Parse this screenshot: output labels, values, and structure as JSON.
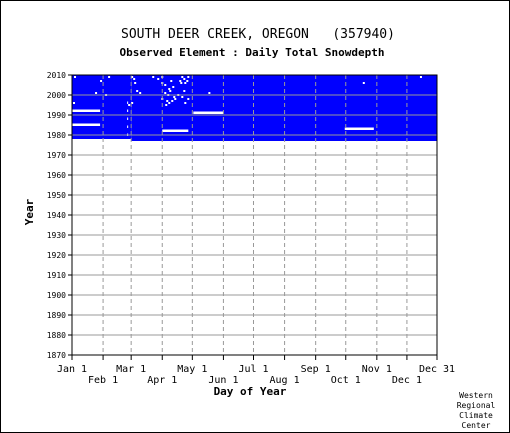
{
  "chart_data": {
    "type": "heatmap",
    "title": "SOUTH DEER CREEK, OREGON   (357940)",
    "subtitle": "Observed Element : Daily Total Snowdepth",
    "xlabel": "Day of Year",
    "ylabel": "Year",
    "x_ticks_upper": [
      "Jan 1",
      "Mar 1",
      "May 1",
      "Jul 1",
      "Sep 1",
      "Nov 1",
      "Dec 31"
    ],
    "x_ticks_lower": [
      "Feb 1",
      "Apr 1",
      "Jun 1",
      "Aug 1",
      "Oct 1",
      "Dec 1"
    ],
    "x_tick_days_upper": [
      1,
      60,
      121,
      182,
      244,
      305,
      365
    ],
    "x_tick_days_lower": [
      32,
      91,
      152,
      213,
      274,
      335
    ],
    "y_ticks": [
      2010,
      2000,
      1990,
      1980,
      1970,
      1960,
      1950,
      1940,
      1930,
      1920,
      1910,
      1900,
      1890,
      1880,
      1870
    ],
    "xlim": [
      1,
      365
    ],
    "ylim": [
      1870,
      2010
    ],
    "grid": true,
    "colors": {
      "observed": "#0000ff",
      "missing": "#ffffff",
      "grid": "#999999"
    },
    "observed_blocks": [
      {
        "day_start": 1,
        "day_end": 60,
        "year_start": 1978,
        "year_end": 2010
      },
      {
        "day_start": 60,
        "day_end": 365,
        "year_start": 1977,
        "year_end": 2010
      }
    ],
    "missing_runs": [
      {
        "year": 1992,
        "day_start": 1,
        "day_end": 29
      },
      {
        "year": 1985,
        "day_start": 1,
        "day_end": 29
      },
      {
        "year": 1982,
        "day_start": 91,
        "day_end": 117
      },
      {
        "year": 1991,
        "day_start": 122,
        "day_end": 152
      },
      {
        "year": 1983,
        "day_start": 273,
        "day_end": 302
      },
      {
        "year": 1980,
        "day_start": 56,
        "day_end": 57
      },
      {
        "year": 1984,
        "day_start": 56,
        "day_end": 57
      },
      {
        "year": 1988,
        "day_start": 56,
        "day_end": 57
      },
      {
        "year": 1992,
        "day_start": 56,
        "day_end": 57
      },
      {
        "year": 1996,
        "day_start": 56,
        "day_end": 57
      }
    ],
    "missing_days": [
      {
        "year": 2009,
        "day": 4
      },
      {
        "year": 2007,
        "day": 30
      },
      {
        "year": 2009,
        "day": 38
      },
      {
        "year": 2001,
        "day": 25
      },
      {
        "year": 2000,
        "day": 35
      },
      {
        "year": 1996,
        "day": 3
      },
      {
        "year": 2008,
        "day": 63
      },
      {
        "year": 2006,
        "day": 64
      },
      {
        "year": 2009,
        "day": 61
      },
      {
        "year": 2002,
        "day": 66
      },
      {
        "year": 2001,
        "day": 69
      },
      {
        "year": 1995,
        "day": 58
      },
      {
        "year": 1996,
        "day": 61
      },
      {
        "year": 2009,
        "day": 82
      },
      {
        "year": 2008,
        "day": 87
      },
      {
        "year": 2009,
        "day": 91
      },
      {
        "year": 2006,
        "day": 91
      },
      {
        "year": 2005,
        "day": 94
      },
      {
        "year": 2003,
        "day": 98
      },
      {
        "year": 2002,
        "day": 99
      },
      {
        "year": 2001,
        "day": 94
      },
      {
        "year": 2000,
        "day": 97
      },
      {
        "year": 1999,
        "day": 103
      },
      {
        "year": 1998,
        "day": 91
      },
      {
        "year": 1997,
        "day": 96
      },
      {
        "year": 1996,
        "day": 98
      },
      {
        "year": 1995,
        "day": 95
      },
      {
        "year": 2007,
        "day": 100
      },
      {
        "year": 2004,
        "day": 102
      },
      {
        "year": 2007,
        "day": 109
      },
      {
        "year": 2006,
        "day": 110
      },
      {
        "year": 2000,
        "day": 107
      },
      {
        "year": 1999,
        "day": 111
      },
      {
        "year": 1998,
        "day": 104
      },
      {
        "year": 1997,
        "day": 101
      },
      {
        "year": 2009,
        "day": 111
      },
      {
        "year": 2008,
        "day": 113
      },
      {
        "year": 2009,
        "day": 117
      },
      {
        "year": 2007,
        "day": 116
      },
      {
        "year": 2006,
        "day": 114
      },
      {
        "year": 2002,
        "day": 113
      },
      {
        "year": 1998,
        "day": 117
      },
      {
        "year": 1996,
        "day": 114
      },
      {
        "year": 2001,
        "day": 138
      },
      {
        "year": 2006,
        "day": 292
      },
      {
        "year": 2009,
        "day": 349
      }
    ],
    "credit": [
      "Western",
      "Regional",
      "Climate",
      "Center"
    ]
  }
}
